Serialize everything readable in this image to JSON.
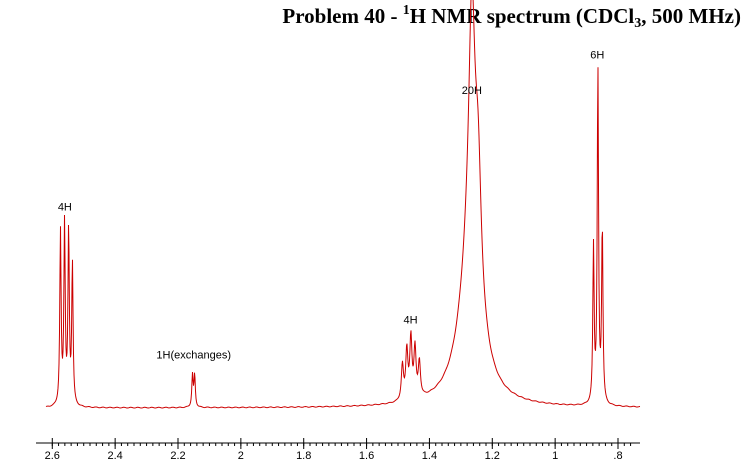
{
  "title": {
    "prefix": "Problem 40 - ",
    "superscript": "1",
    "middle": "H NMR spectrum (CDCl",
    "subscript": "3",
    "suffix": ", 500 MHz)"
  },
  "colors": {
    "spectrum": "#cc0000",
    "axis": "#000000",
    "labels": "#000000"
  },
  "chart_data": {
    "type": "line",
    "xlabel": "",
    "ylabel": "",
    "xlim": [
      2.62,
      0.73
    ],
    "x_reversed": true,
    "ylim": [
      0,
      1.0
    ],
    "ticks": [
      {
        "value": 2.6,
        "label": "2.6"
      },
      {
        "value": 2.4,
        "label": "2.4"
      },
      {
        "value": 2.2,
        "label": "2.2"
      },
      {
        "value": 2.0,
        "label": "2"
      },
      {
        "value": 1.8,
        "label": "1.8"
      },
      {
        "value": 1.6,
        "label": "1.6"
      },
      {
        "value": 1.4,
        "label": "1.4"
      },
      {
        "value": 1.2,
        "label": "1.2"
      },
      {
        "value": 1.0,
        "label": "1"
      },
      {
        "value": 0.8,
        "label": ".8"
      }
    ],
    "peaks": [
      {
        "ppm": 2.574,
        "height": 0.49,
        "width": 0.0025
      },
      {
        "ppm": 2.561,
        "height": 0.51,
        "width": 0.0025
      },
      {
        "ppm": 2.548,
        "height": 0.49,
        "width": 0.0025
      },
      {
        "ppm": 2.536,
        "height": 0.4,
        "width": 0.0025
      },
      {
        "ppm": 2.154,
        "height": 0.09,
        "width": 0.0025
      },
      {
        "ppm": 2.147,
        "height": 0.09,
        "width": 0.0025
      },
      {
        "ppm": 1.486,
        "height": 0.1,
        "width": 0.004
      },
      {
        "ppm": 1.472,
        "height": 0.14,
        "width": 0.004
      },
      {
        "ppm": 1.459,
        "height": 0.17,
        "width": 0.004
      },
      {
        "ppm": 1.446,
        "height": 0.14,
        "width": 0.004
      },
      {
        "ppm": 1.432,
        "height": 0.1,
        "width": 0.004
      },
      {
        "ppm": 1.265,
        "height": 0.7,
        "width": 0.012
      },
      {
        "ppm": 1.245,
        "height": 0.35,
        "width": 0.012
      },
      {
        "ppm": 1.27,
        "height": 0.42,
        "width": 0.04
      },
      {
        "ppm": 0.878,
        "height": 0.44,
        "width": 0.0025
      },
      {
        "ppm": 0.864,
        "height": 0.95,
        "width": 0.0025
      },
      {
        "ppm": 0.85,
        "height": 0.5,
        "width": 0.0025
      }
    ],
    "annotations": [
      {
        "text": "4H",
        "ppm": 2.56,
        "height": 0.56
      },
      {
        "text": "1H(exchanges)",
        "ppm": 2.15,
        "height": 0.14
      },
      {
        "text": "4H",
        "ppm": 1.46,
        "height": 0.24
      },
      {
        "text": "20H",
        "ppm": 1.265,
        "height": 0.89
      },
      {
        "text": "6H",
        "ppm": 0.866,
        "height": 0.99
      }
    ]
  }
}
